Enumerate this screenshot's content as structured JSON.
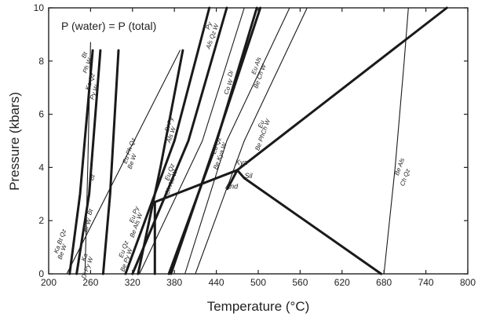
{
  "chart_data": {
    "type": "line",
    "title": "",
    "annotation": "P (water) = P (total)",
    "xlabel": "Temperature  (°C)",
    "ylabel": "Pressure  (kbars)",
    "xlim": [
      200,
      800
    ],
    "ylim": [
      0,
      10
    ],
    "x_ticks": [
      200,
      260,
      320,
      380,
      440,
      500,
      560,
      620,
      680,
      740,
      800
    ],
    "y_ticks": [
      0,
      2,
      4,
      6,
      8,
      10
    ],
    "grid": false,
    "series": [
      {
        "weight": "heavy",
        "points": [
          [
            230,
            0
          ],
          [
            245,
            3
          ],
          [
            263,
            8.4
          ]
        ]
      },
      {
        "weight": "heavy",
        "points": [
          [
            240,
            0
          ],
          [
            258,
            3
          ],
          [
            274,
            8.4
          ]
        ]
      },
      {
        "weight": "heavy",
        "points": [
          [
            278,
            0
          ],
          [
            288,
            3
          ],
          [
            300,
            8.4
          ]
        ]
      },
      {
        "weight": "thin",
        "points": [
          [
            252,
            0
          ],
          [
            256,
            4
          ],
          [
            260,
            8.7
          ]
        ]
      },
      {
        "weight": "thin",
        "points": [
          [
            226,
            0
          ],
          [
            388,
            8.4
          ]
        ]
      },
      {
        "weight": "heavy",
        "points": [
          [
            328,
            0
          ],
          [
            360,
            4
          ],
          [
            392,
            8.4
          ]
        ]
      },
      {
        "weight": "heavy",
        "points": [
          [
            310,
            0
          ],
          [
            380,
            5
          ],
          [
            430,
            10
          ]
        ]
      },
      {
        "weight": "heavy",
        "points": [
          [
            320,
            0
          ],
          [
            400,
            5
          ],
          [
            455,
            10
          ]
        ]
      },
      {
        "weight": "thin",
        "points": [
          [
            330,
            0
          ],
          [
            420,
            5
          ],
          [
            480,
            10
          ]
        ]
      },
      {
        "weight": "heavy",
        "points": [
          [
            375,
            0
          ],
          [
            440,
            5
          ],
          [
            503,
            10
          ]
        ]
      },
      {
        "weight": "heavy",
        "points": [
          [
            372,
            0
          ],
          [
            435,
            4.5
          ],
          [
            498,
            10
          ]
        ]
      },
      {
        "weight": "thin",
        "points": [
          [
            395,
            0
          ],
          [
            455,
            5
          ],
          [
            545,
            10
          ]
        ]
      },
      {
        "weight": "thin",
        "points": [
          [
            410,
            0
          ],
          [
            480,
            5
          ],
          [
            570,
            10
          ]
        ]
      },
      {
        "weight": "heavy",
        "points": [
          [
            352,
            2.7
          ],
          [
            470,
            3.9
          ],
          [
            770,
            10
          ]
        ]
      },
      {
        "weight": "heavy",
        "points": [
          [
            470,
            3.9
          ],
          [
            480,
            3.6
          ],
          [
            676,
            0
          ]
        ]
      },
      {
        "weight": "heavy",
        "points": [
          [
            470,
            3.9
          ],
          [
            456,
            3.2
          ]
        ]
      },
      {
        "weight": "heavy",
        "points": [
          [
            352,
            0
          ],
          [
            352,
            2.7
          ]
        ]
      },
      {
        "weight": "thin",
        "points": [
          [
            680,
            0
          ],
          [
            696,
            4
          ],
          [
            709,
            8
          ],
          [
            715,
            10
          ]
        ]
      }
    ],
    "labels": [
      {
        "text": "Bt",
        "x": 254,
        "y": 8.2,
        "kind": "field"
      },
      {
        "text": "Ph W",
        "x": 258,
        "y": 7.8,
        "kind": "field"
      },
      {
        "text": "Ka Qz",
        "x": 262,
        "y": 7.2,
        "kind": "field"
      },
      {
        "text": "Py W",
        "x": 268,
        "y": 6.8,
        "kind": "field"
      },
      {
        "text": "Bt",
        "x": 265,
        "y": 3.6,
        "kind": "field"
      },
      {
        "text": "Bt",
        "x": 262,
        "y": 2.3,
        "kind": "field"
      },
      {
        "text": "Br W",
        "x": 258,
        "y": 1.8,
        "kind": "field"
      },
      {
        "text": "Ka",
        "x": 254,
        "y": 0.6,
        "kind": "field"
      },
      {
        "text": "Di Py W",
        "x": 258,
        "y": 0.2,
        "kind": "field"
      },
      {
        "text": "Ka Bt Qz",
        "x": 219,
        "y": 1.2,
        "kind": "field"
      },
      {
        "text": "Be W",
        "x": 222,
        "y": 0.8,
        "kind": "field"
      },
      {
        "text": "Eu Ph Qz",
        "x": 318,
        "y": 4.6,
        "kind": "field"
      },
      {
        "text": "Be W",
        "x": 322,
        "y": 4.2,
        "kind": "field"
      },
      {
        "text": "Di Py",
        "x": 375,
        "y": 5.6,
        "kind": "field"
      },
      {
        "text": "Als W",
        "x": 378,
        "y": 5.2,
        "kind": "field"
      },
      {
        "text": "Eu Qz",
        "x": 376,
        "y": 3.8,
        "kind": "field"
      },
      {
        "text": "Ch Als W",
        "x": 378,
        "y": 3.4,
        "kind": "field"
      },
      {
        "text": "Eu Py",
        "x": 325,
        "y": 2.2,
        "kind": "field"
      },
      {
        "text": "Be Als W",
        "x": 328,
        "y": 1.8,
        "kind": "field"
      },
      {
        "text": "Eu Qz",
        "x": 310,
        "y": 0.9,
        "kind": "field"
      },
      {
        "text": "Be Py W",
        "x": 314,
        "y": 0.5,
        "kind": "field"
      },
      {
        "text": "Py",
        "x": 432,
        "y": 9.3,
        "kind": "field"
      },
      {
        "text": "Als Qz W",
        "x": 437,
        "y": 8.9,
        "kind": "field"
      },
      {
        "text": "Di",
        "x": 463,
        "y": 7.5,
        "kind": "field"
      },
      {
        "text": "Co W",
        "x": 460,
        "y": 7.0,
        "kind": "field"
      },
      {
        "text": "Eu Als",
        "x": 500,
        "y": 7.8,
        "kind": "field"
      },
      {
        "text": "Be Ch W",
        "x": 505,
        "y": 7.4,
        "kind": "field"
      },
      {
        "text": "Eu Qz",
        "x": 443,
        "y": 4.8,
        "kind": "field"
      },
      {
        "text": "Be Kya W",
        "x": 448,
        "y": 4.4,
        "kind": "field"
      },
      {
        "text": "Eu",
        "x": 507,
        "y": 5.6,
        "kind": "field"
      },
      {
        "text": "Be PhCh W",
        "x": 509,
        "y": 5.2,
        "kind": "field"
      },
      {
        "text": "Be Als",
        "x": 705,
        "y": 4.0,
        "kind": "field"
      },
      {
        "text": "Ch Qz",
        "x": 713,
        "y": 3.6,
        "kind": "field"
      },
      {
        "text": "Kya",
        "x": 476,
        "y": 4.1,
        "kind": "phase"
      },
      {
        "text": "Sil",
        "x": 486,
        "y": 3.6,
        "kind": "phase"
      },
      {
        "text": "And",
        "x": 462,
        "y": 3.2,
        "kind": "phase"
      }
    ]
  }
}
